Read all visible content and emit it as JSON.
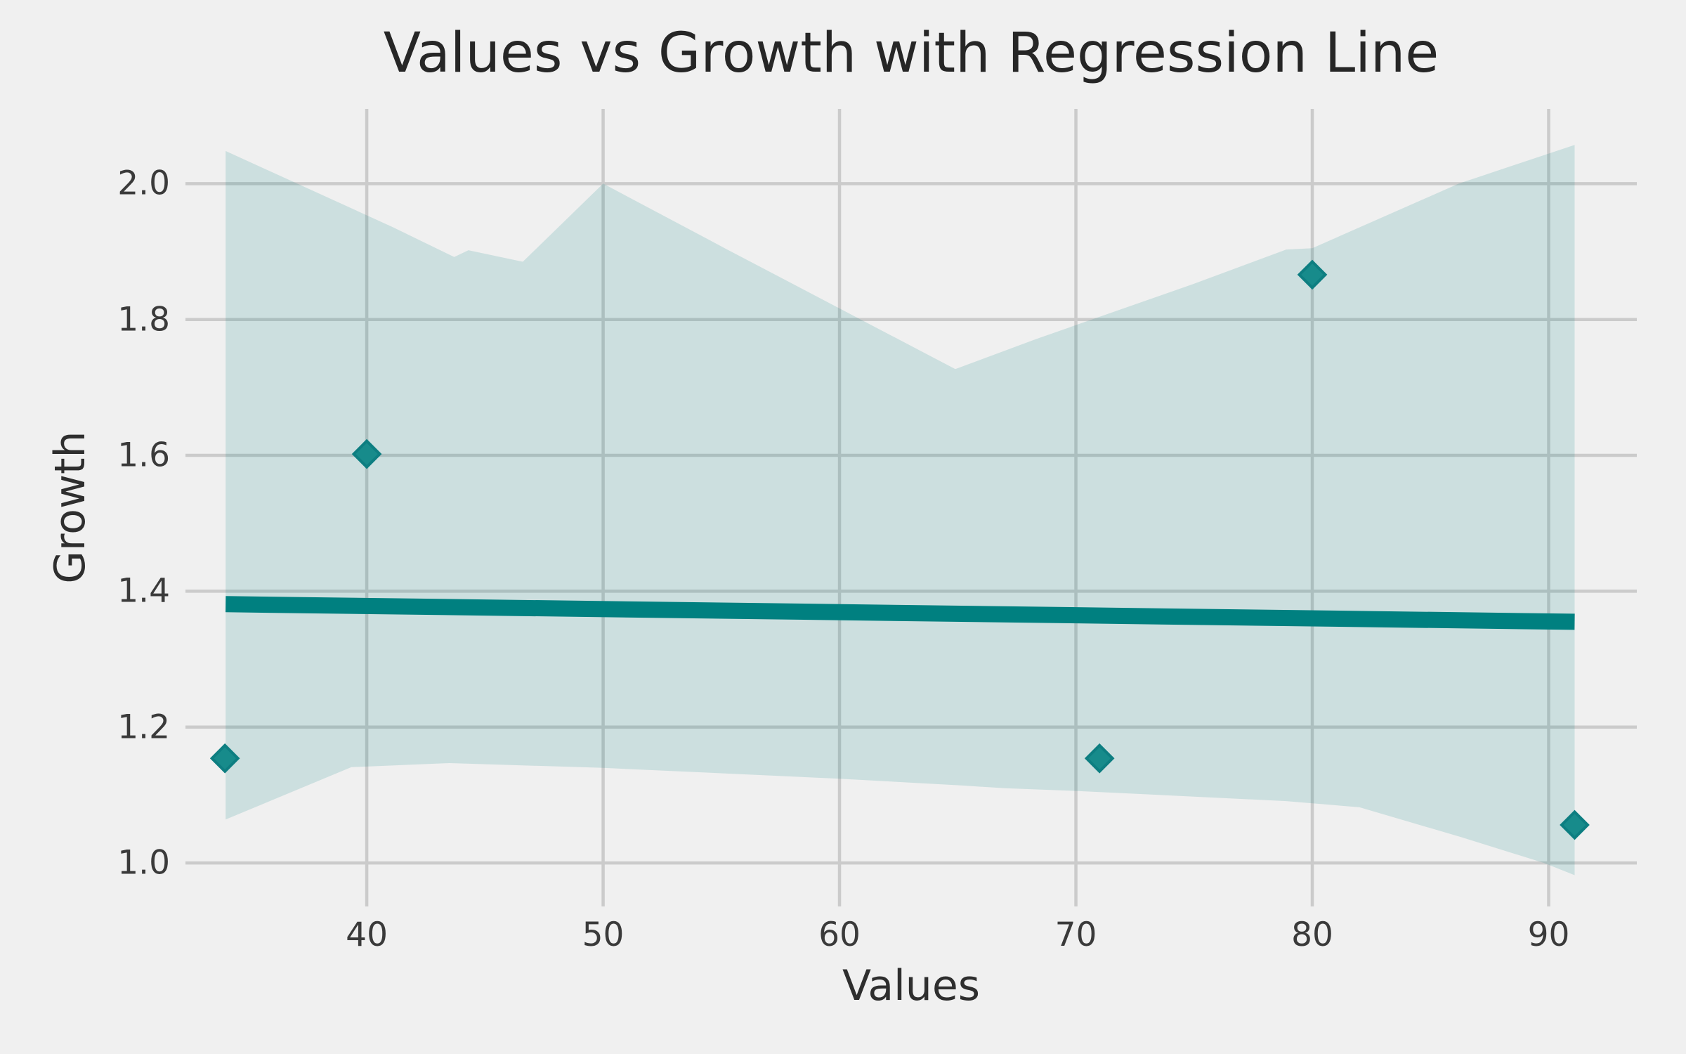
{
  "figure": {
    "background_color": "#f0f0f0",
    "grid_color": "#cbcbcb",
    "grid_width": 4.5,
    "accent_color": "#008080",
    "band_fill_color": "rgba(0,128,128,0.15)",
    "marker_fill_color": "#178b8b",
    "marker_edge_color": "#0d7e81",
    "marker_half_diagonal": 18.5,
    "regression_line_width": 23,
    "title_color": "#262626",
    "label_color": "#2e2e2e",
    "tick_color": "#3a3a3a"
  },
  "chart_data": {
    "type": "scatter",
    "title": "Values vs Growth with Regression Line",
    "xlabel": "Values",
    "ylabel": "Growth",
    "grid": true,
    "legend": "none",
    "xlim": [
      32.33,
      93.73
    ],
    "ylim": [
      0.936,
      2.11
    ],
    "x_ticks": [
      {
        "value": 40,
        "label": "40"
      },
      {
        "value": 50,
        "label": "50"
      },
      {
        "value": 60,
        "label": "60"
      },
      {
        "value": 70,
        "label": "70"
      },
      {
        "value": 80,
        "label": "80"
      },
      {
        "value": 90,
        "label": "90"
      }
    ],
    "y_ticks": [
      {
        "value": 1.0,
        "label": "1.0"
      },
      {
        "value": 1.2,
        "label": "1.2"
      },
      {
        "value": 1.4,
        "label": "1.4"
      },
      {
        "value": 1.6,
        "label": "1.6"
      },
      {
        "value": 1.8,
        "label": "1.8"
      },
      {
        "value": 2.0,
        "label": "2.0"
      }
    ],
    "scatter_points": [
      [
        34.0,
        1.154
      ],
      [
        40.0,
        1.602
      ],
      [
        71.0,
        1.154
      ],
      [
        80.0,
        1.866
      ],
      [
        91.1,
        1.056
      ]
    ],
    "regression_line": {
      "x1": 34.03,
      "y1": 1.381,
      "x2": 91.1,
      "y2": 1.355
    },
    "confidence_band": {
      "upper": [
        [
          34.03,
          2.048
        ],
        [
          41.1,
          1.936
        ],
        [
          43.7,
          1.892
        ],
        [
          44.3,
          1.902
        ],
        [
          46.6,
          1.885
        ],
        [
          50.0,
          2.0
        ],
        [
          55.2,
          1.904
        ],
        [
          64.9,
          1.727
        ],
        [
          68.3,
          1.771
        ],
        [
          74.95,
          1.852
        ],
        [
          78.9,
          1.903
        ],
        [
          80.0,
          1.905
        ],
        [
          86.2,
          2.0
        ],
        [
          91.1,
          2.057
        ]
      ],
      "lower": [
        [
          34.03,
          1.064
        ],
        [
          39.35,
          1.141
        ],
        [
          43.5,
          1.147
        ],
        [
          50.0,
          1.14
        ],
        [
          60.0,
          1.124
        ],
        [
          65.2,
          1.114
        ],
        [
          67.0,
          1.11
        ],
        [
          70.0,
          1.106
        ],
        [
          78.9,
          1.091
        ],
        [
          82.0,
          1.082
        ],
        [
          86.3,
          1.038
        ],
        [
          89.8,
          1.0
        ],
        [
          91.1,
          0.982
        ]
      ]
    }
  }
}
